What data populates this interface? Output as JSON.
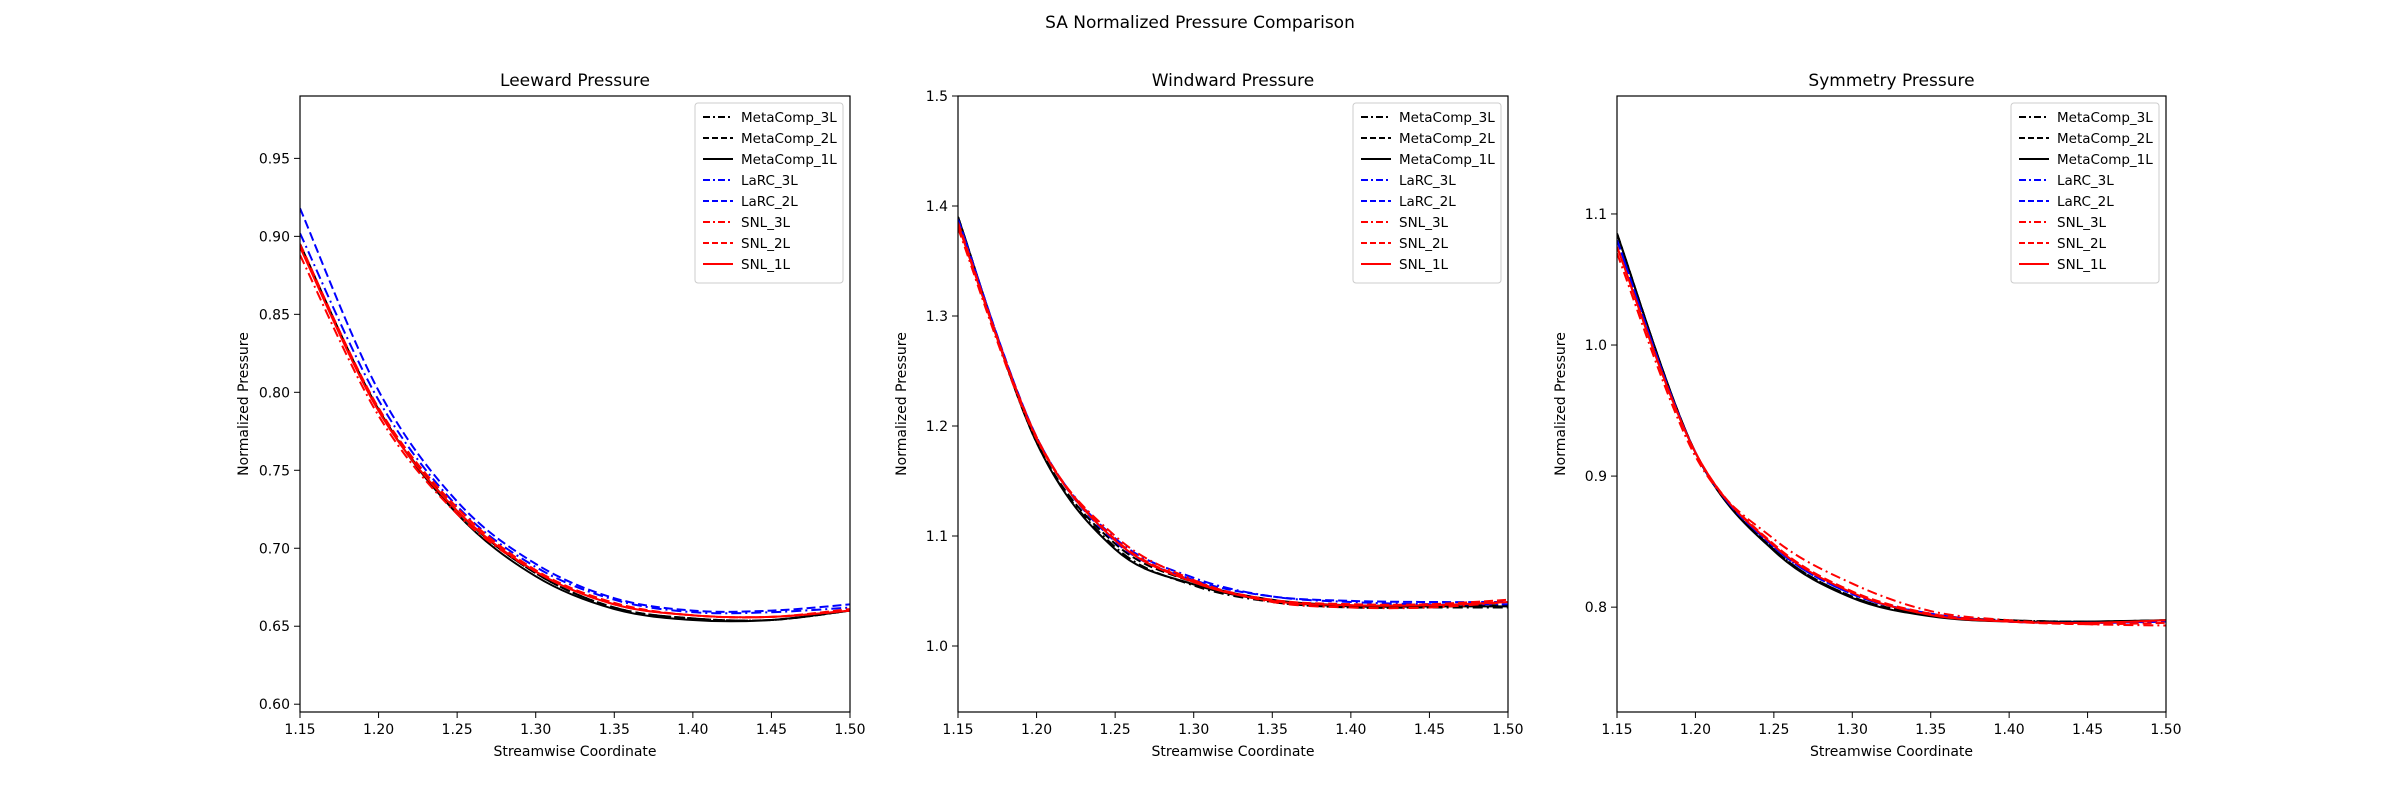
{
  "figure": {
    "suptitle": "SA Normalized Pressure Comparison"
  },
  "legend_entries": [
    {
      "name": "MetaComp_3L",
      "color": "#000000",
      "dash": "dashdot"
    },
    {
      "name": "MetaComp_2L",
      "color": "#000000",
      "dash": "dashed"
    },
    {
      "name": "MetaComp_1L",
      "color": "#000000",
      "dash": "solid"
    },
    {
      "name": "LaRC_3L",
      "color": "#0000ff",
      "dash": "dashdot"
    },
    {
      "name": "LaRC_2L",
      "color": "#0000ff",
      "dash": "dashed"
    },
    {
      "name": "SNL_3L",
      "color": "#ff0000",
      "dash": "dashdot"
    },
    {
      "name": "SNL_2L",
      "color": "#ff0000",
      "dash": "dashed"
    },
    {
      "name": "SNL_1L",
      "color": "#ff0000",
      "dash": "solid"
    }
  ],
  "chart_data": [
    {
      "type": "line",
      "title": "Leeward Pressure",
      "xlabel": "Streamwise Coordinate",
      "ylabel": "Normalized Pressure",
      "xlim": [
        1.15,
        1.5
      ],
      "ylim": [
        0.595,
        0.99
      ],
      "xticks": [
        "1.15",
        "1.20",
        "1.25",
        "1.30",
        "1.35",
        "1.40",
        "1.45",
        "1.50"
      ],
      "yticks": [
        "0.60",
        "0.65",
        "0.70",
        "0.75",
        "0.80",
        "0.85",
        "0.90",
        "0.95"
      ],
      "grid": false,
      "legend": "top-right",
      "x": [
        1.15,
        1.2,
        1.25,
        1.3,
        1.35,
        1.4,
        1.45,
        1.5
      ],
      "series": [
        {
          "name": "MetaComp_3L",
          "values": [
            0.895,
            0.789,
            0.724,
            0.684,
            0.662,
            0.655,
            0.654,
            0.66
          ]
        },
        {
          "name": "MetaComp_2L",
          "values": [
            0.895,
            0.789,
            0.724,
            0.684,
            0.662,
            0.655,
            0.654,
            0.66
          ]
        },
        {
          "name": "MetaComp_1L",
          "values": [
            0.895,
            0.789,
            0.722,
            0.682,
            0.661,
            0.654,
            0.654,
            0.66
          ]
        },
        {
          "name": "LaRC_3L",
          "values": [
            0.902,
            0.795,
            0.727,
            0.688,
            0.667,
            0.659,
            0.659,
            0.662
          ]
        },
        {
          "name": "LaRC_2L",
          "values": [
            0.918,
            0.801,
            0.73,
            0.69,
            0.668,
            0.66,
            0.66,
            0.664
          ]
        },
        {
          "name": "SNL_3L",
          "values": [
            0.888,
            0.785,
            0.722,
            0.685,
            0.664,
            0.657,
            0.656,
            0.66
          ]
        },
        {
          "name": "SNL_2L",
          "values": [
            0.895,
            0.79,
            0.726,
            0.686,
            0.665,
            0.657,
            0.656,
            0.661
          ]
        },
        {
          "name": "SNL_1L",
          "values": [
            0.893,
            0.788,
            0.724,
            0.685,
            0.664,
            0.657,
            0.656,
            0.66
          ]
        }
      ]
    },
    {
      "type": "line",
      "title": "Windward Pressure",
      "xlabel": "Streamwise Coordinate",
      "ylabel": "Normalized Pressure",
      "xlim": [
        1.15,
        1.5
      ],
      "ylim": [
        0.94,
        1.5
      ],
      "xticks": [
        "1.15",
        "1.20",
        "1.25",
        "1.30",
        "1.35",
        "1.40",
        "1.45",
        "1.50"
      ],
      "yticks": [
        "1.0",
        "1.1",
        "1.2",
        "1.3",
        "1.4",
        "1.5"
      ],
      "grid": false,
      "legend": "top-right",
      "x": [
        1.15,
        1.2,
        1.25,
        1.3,
        1.35,
        1.4,
        1.45,
        1.5
      ],
      "series": [
        {
          "name": "MetaComp_3L",
          "values": [
            1.39,
            1.185,
            1.09,
            1.055,
            1.04,
            1.035,
            1.035,
            1.035
          ]
        },
        {
          "name": "MetaComp_2L",
          "values": [
            1.39,
            1.186,
            1.093,
            1.058,
            1.042,
            1.037,
            1.037,
            1.037
          ]
        },
        {
          "name": "MetaComp_1L",
          "values": [
            1.39,
            1.185,
            1.088,
            1.056,
            1.041,
            1.036,
            1.036,
            1.036
          ]
        },
        {
          "name": "LaRC_3L",
          "values": [
            1.388,
            1.19,
            1.098,
            1.062,
            1.045,
            1.04,
            1.038,
            1.038
          ]
        },
        {
          "name": "LaRC_2L",
          "values": [
            1.388,
            1.19,
            1.095,
            1.06,
            1.045,
            1.041,
            1.04,
            1.04
          ]
        },
        {
          "name": "SNL_3L",
          "values": [
            1.38,
            1.188,
            1.1,
            1.06,
            1.04,
            1.035,
            1.035,
            1.04
          ]
        },
        {
          "name": "SNL_2L",
          "values": [
            1.385,
            1.19,
            1.097,
            1.059,
            1.042,
            1.038,
            1.038,
            1.042
          ]
        },
        {
          "name": "SNL_1L",
          "values": [
            1.383,
            1.189,
            1.096,
            1.058,
            1.041,
            1.037,
            1.037,
            1.04
          ]
        }
      ]
    },
    {
      "type": "line",
      "title": "Symmetry Pressure",
      "xlabel": "Streamwise Coordinate",
      "ylabel": "Normalized Pressure",
      "xlim": [
        1.15,
        1.5
      ],
      "ylim": [
        0.72,
        1.19
      ],
      "xticks": [
        "1.15",
        "1.20",
        "1.25",
        "1.30",
        "1.35",
        "1.40",
        "1.45",
        "1.50"
      ],
      "yticks": [
        "0.8",
        "0.9",
        "1.0",
        "1.1"
      ],
      "grid": false,
      "legend": "top-right",
      "x": [
        1.15,
        1.2,
        1.25,
        1.3,
        1.35,
        1.4,
        1.45,
        1.5
      ],
      "series": [
        {
          "name": "MetaComp_3L",
          "values": [
            1.085,
            0.918,
            0.844,
            0.808,
            0.794,
            0.79,
            0.789,
            0.79
          ]
        },
        {
          "name": "MetaComp_2L",
          "values": [
            1.085,
            0.918,
            0.844,
            0.808,
            0.794,
            0.79,
            0.789,
            0.79
          ]
        },
        {
          "name": "MetaComp_1L",
          "values": [
            1.085,
            0.918,
            0.843,
            0.807,
            0.793,
            0.789,
            0.789,
            0.79
          ]
        },
        {
          "name": "LaRC_3L",
          "values": [
            1.08,
            0.918,
            0.846,
            0.81,
            0.795,
            0.789,
            0.788,
            0.789
          ]
        },
        {
          "name": "LaRC_2L",
          "values": [
            1.08,
            0.918,
            0.846,
            0.81,
            0.795,
            0.789,
            0.788,
            0.789
          ]
        },
        {
          "name": "SNL_3L",
          "values": [
            1.07,
            0.915,
            0.852,
            0.818,
            0.797,
            0.79,
            0.787,
            0.786
          ]
        },
        {
          "name": "SNL_2L",
          "values": [
            1.075,
            0.918,
            0.848,
            0.812,
            0.795,
            0.789,
            0.787,
            0.788
          ]
        },
        {
          "name": "SNL_1L",
          "values": [
            1.075,
            0.918,
            0.847,
            0.811,
            0.794,
            0.789,
            0.788,
            0.79
          ]
        }
      ]
    }
  ]
}
